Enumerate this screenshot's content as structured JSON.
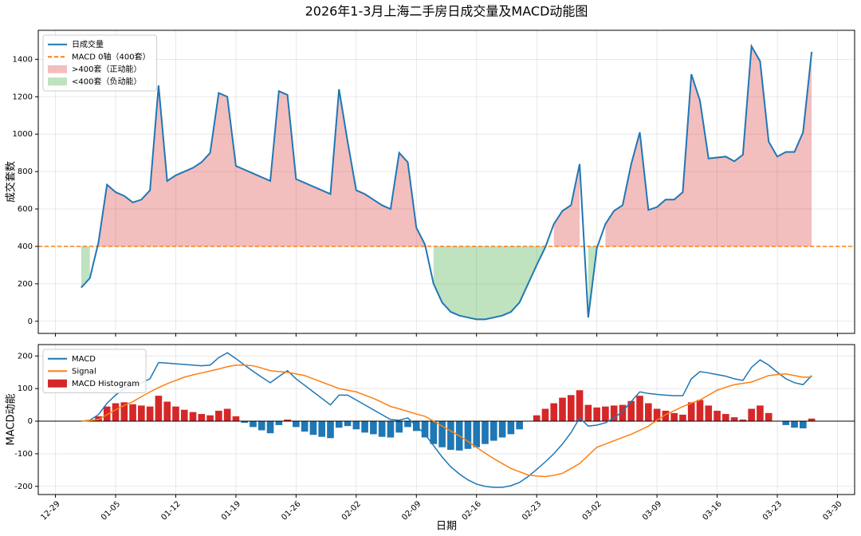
{
  "chart_data": [
    {
      "type": "line",
      "title": "2026年1-3月上海二手房日成交量及MACD动能图",
      "ylabel": "成交套数",
      "x": [
        "01-01",
        "01-02",
        "01-03",
        "01-04",
        "01-05",
        "01-06",
        "01-07",
        "01-08",
        "01-09",
        "01-10",
        "01-11",
        "01-12",
        "01-13",
        "01-14",
        "01-15",
        "01-16",
        "01-17",
        "01-18",
        "01-19",
        "01-20",
        "01-21",
        "01-22",
        "01-23",
        "01-24",
        "01-25",
        "01-26",
        "01-27",
        "01-28",
        "01-29",
        "01-30",
        "01-31",
        "02-01",
        "02-02",
        "02-03",
        "02-04",
        "02-05",
        "02-06",
        "02-07",
        "02-08",
        "02-09",
        "02-10",
        "02-11",
        "02-12",
        "02-13",
        "02-14",
        "02-15",
        "02-16",
        "02-17",
        "02-18",
        "02-19",
        "02-20",
        "02-21",
        "02-22",
        "02-23",
        "02-24",
        "02-25",
        "02-26",
        "02-27",
        "02-28",
        "03-01",
        "03-02",
        "03-03",
        "03-04",
        "03-05",
        "03-06",
        "03-07",
        "03-08",
        "03-09",
        "03-10",
        "03-11",
        "03-12",
        "03-13",
        "03-14",
        "03-15",
        "03-16",
        "03-17",
        "03-18",
        "03-19",
        "03-20",
        "03-21",
        "03-22",
        "03-23",
        "03-24",
        "03-25",
        "03-26",
        "03-27"
      ],
      "series": [
        {
          "name": "日成交量",
          "color": "#1f77b4",
          "values": [
            180,
            230,
            420,
            730,
            690,
            670,
            635,
            650,
            700,
            1260,
            750,
            780,
            800,
            820,
            850,
            900,
            1220,
            1200,
            830,
            810,
            790,
            770,
            750,
            1230,
            1210,
            760,
            740,
            720,
            700,
            680,
            1240,
            960,
            700,
            680,
            650,
            620,
            600,
            900,
            850,
            500,
            410,
            200,
            100,
            50,
            30,
            20,
            10,
            10,
            20,
            30,
            50,
            100,
            200,
            300,
            395,
            520,
            590,
            620,
            840,
            20,
            390,
            520,
            590,
            620,
            840,
            1010,
            595,
            610,
            650,
            650,
            690,
            1320,
            1180,
            870,
            875,
            880,
            855,
            890,
            1470,
            1390,
            960,
            880,
            905,
            905,
            1010,
            1440
          ]
        }
      ],
      "reference_line": {
        "name": "MACD 0轴（400套）",
        "value": 400,
        "color": "#ff7f0e"
      },
      "fills": [
        {
          "name": ">400套（正动能）",
          "color": "#d62728",
          "where": "above"
        },
        {
          "name": "<400套（负动能）",
          "color": "#2ca02c",
          "where": "below"
        }
      ],
      "xlim": [
        "12-27",
        "04-01"
      ],
      "xticks": [
        "12-29",
        "01-05",
        "01-12",
        "01-19",
        "01-26",
        "02-02",
        "02-09",
        "02-16",
        "02-23",
        "03-02",
        "03-09",
        "03-16",
        "03-23",
        "03-30"
      ],
      "ylim": [
        -65,
        1555
      ],
      "yticks": [
        0,
        200,
        400,
        600,
        800,
        1000,
        1200,
        1400
      ],
      "grid": true,
      "legend": "upper left"
    },
    {
      "type": "combo",
      "ylabel": "MACD动能",
      "xlabel": "日期",
      "x": [
        "01-01",
        "01-02",
        "01-03",
        "01-04",
        "01-05",
        "01-06",
        "01-07",
        "01-08",
        "01-09",
        "01-10",
        "01-11",
        "01-12",
        "01-13",
        "01-14",
        "01-15",
        "01-16",
        "01-17",
        "01-18",
        "01-19",
        "01-20",
        "01-21",
        "01-22",
        "01-23",
        "01-24",
        "01-25",
        "01-26",
        "01-27",
        "01-28",
        "01-29",
        "01-30",
        "01-31",
        "02-01",
        "02-02",
        "02-03",
        "02-04",
        "02-05",
        "02-06",
        "02-07",
        "02-08",
        "02-09",
        "02-10",
        "02-11",
        "02-12",
        "02-13",
        "02-14",
        "02-15",
        "02-16",
        "02-17",
        "02-18",
        "02-19",
        "02-20",
        "02-21",
        "02-22",
        "02-23",
        "02-24",
        "02-25",
        "02-26",
        "02-27",
        "02-28",
        "03-01",
        "03-02",
        "03-03",
        "03-04",
        "03-05",
        "03-06",
        "03-07",
        "03-08",
        "03-09",
        "03-10",
        "03-11",
        "03-12",
        "03-13",
        "03-14",
        "03-15",
        "03-16",
        "03-17",
        "03-18",
        "03-19",
        "03-20",
        "03-21",
        "03-22",
        "03-23",
        "03-24",
        "03-25",
        "03-26",
        "03-27"
      ],
      "series": [
        {
          "name": "MACD",
          "type": "line",
          "color": "#1f77b4",
          "values": [
            0,
            3,
            20,
            55,
            80,
            100,
            110,
            118,
            130,
            180,
            178,
            176,
            174,
            172,
            170,
            172,
            195,
            210,
            192,
            172,
            153,
            135,
            118,
            137,
            155,
            130,
            110,
            90,
            70,
            50,
            80,
            80,
            65,
            50,
            35,
            20,
            5,
            3,
            10,
            -15,
            -40,
            -75,
            -110,
            -140,
            -162,
            -180,
            -193,
            -200,
            -203,
            -203,
            -198,
            -188,
            -170,
            -148,
            -125,
            -100,
            -70,
            -35,
            10,
            -15,
            -12,
            -5,
            10,
            30,
            60,
            90,
            85,
            82,
            80,
            78,
            78,
            130,
            152,
            148,
            143,
            138,
            130,
            125,
            165,
            188,
            172,
            150,
            130,
            118,
            112,
            140
          ]
        },
        {
          "name": "Signal",
          "type": "line",
          "color": "#ff7f0e",
          "values": [
            0,
            2,
            5,
            20,
            35,
            48,
            60,
            75,
            90,
            103,
            115,
            125,
            135,
            142,
            148,
            154,
            160,
            167,
            172,
            172,
            170,
            163,
            155,
            152,
            150,
            145,
            140,
            130,
            120,
            110,
            100,
            95,
            90,
            80,
            70,
            58,
            45,
            38,
            30,
            22,
            15,
            0,
            -15,
            -30,
            -45,
            -62,
            -80,
            -98,
            -115,
            -130,
            -145,
            -155,
            -165,
            -168,
            -170,
            -166,
            -160,
            -145,
            -130,
            -105,
            -80,
            -70,
            -60,
            -50,
            -40,
            -28,
            -15,
            3,
            20,
            32,
            45,
            55,
            65,
            80,
            95,
            104,
            112,
            116,
            120,
            130,
            140,
            143,
            145,
            140,
            135,
            135
          ]
        },
        {
          "name": "MACD Histogram",
          "type": "bar",
          "color": "#d62728",
          "negative_color": "#1f77b4",
          "values": [
            0,
            0,
            15,
            45,
            55,
            58,
            52,
            48,
            45,
            78,
            60,
            45,
            35,
            28,
            22,
            18,
            32,
            38,
            15,
            -5,
            -18,
            -28,
            -37,
            -12,
            5,
            -18,
            -32,
            -42,
            -48,
            -52,
            -20,
            -15,
            -25,
            -35,
            -40,
            -48,
            -50,
            -35,
            -18,
            -30,
            -50,
            -70,
            -80,
            -88,
            -90,
            -85,
            -80,
            -70,
            -60,
            -50,
            -40,
            -25,
            0,
            18,
            38,
            55,
            72,
            80,
            95,
            50,
            42,
            45,
            48,
            50,
            62,
            78,
            55,
            38,
            32,
            25,
            20,
            58,
            65,
            48,
            32,
            22,
            12,
            5,
            38,
            48,
            25,
            0,
            -12,
            -20,
            -22,
            8
          ]
        }
      ],
      "zero_line": {
        "value": 0,
        "color": "#000000"
      },
      "xlim": [
        "12-27",
        "04-01"
      ],
      "xticks": [
        "12-29",
        "01-05",
        "01-12",
        "01-19",
        "01-26",
        "02-02",
        "02-09",
        "02-16",
        "02-23",
        "03-02",
        "03-09",
        "03-16",
        "03-23",
        "03-30"
      ],
      "ylim": [
        -225,
        235
      ],
      "yticks": [
        -200,
        -100,
        0,
        100,
        200
      ],
      "grid": true,
      "legend": "upper left"
    }
  ]
}
